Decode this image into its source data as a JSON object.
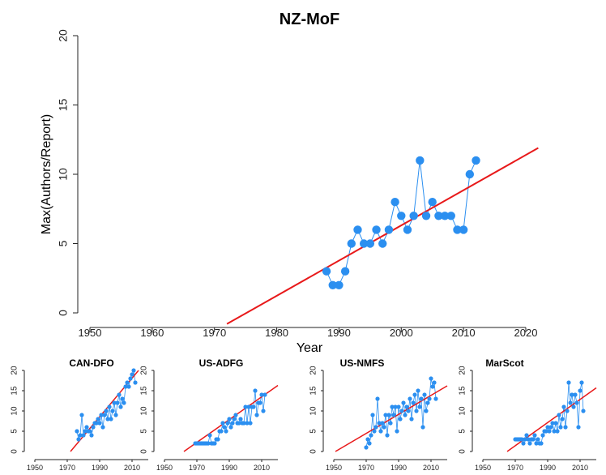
{
  "chart_data": [
    {
      "type": "scatter",
      "title": "NZ-MoF",
      "xlabel": "Year",
      "ylabel": "Max(Authors/Report)",
      "xlim": [
        1950,
        2020
      ],
      "ylim": [
        0,
        20
      ],
      "xticks": [
        1950,
        1960,
        1970,
        1980,
        1990,
        2000,
        2010,
        2020
      ],
      "yticks": [
        0,
        5,
        10,
        15,
        20
      ],
      "grid": false,
      "connect_points": true,
      "trend": {
        "x": [
          1972,
          2022
        ],
        "y": [
          -0.8,
          11.9
        ]
      },
      "x": [
        1988,
        1989,
        1990,
        1991,
        1992,
        1993,
        1994,
        1995,
        1996,
        1997,
        1998,
        1999,
        2000,
        2001,
        2002,
        2003,
        2004,
        2005,
        2006,
        2007,
        2008,
        2009,
        2010,
        2011,
        2012
      ],
      "y": [
        3,
        2,
        2,
        3,
        5,
        6,
        5,
        5,
        6,
        5,
        6,
        8,
        7,
        6,
        7,
        11,
        7,
        8,
        7,
        7,
        7,
        6,
        6,
        10,
        11
      ]
    },
    {
      "type": "scatter",
      "title": "CAN-DFO",
      "xlim": [
        1950,
        2020
      ],
      "ylim": [
        0,
        20
      ],
      "xticks": [
        1950,
        1970,
        1990,
        2010
      ],
      "yticks": [
        0,
        5,
        10,
        15,
        20
      ],
      "connect_points": true,
      "trend": {
        "x": [
          1972,
          2014
        ],
        "y": [
          0,
          20
        ]
      },
      "x": [
        1976,
        1977,
        1978,
        1979,
        1980,
        1981,
        1982,
        1983,
        1984,
        1985,
        1986,
        1987,
        1988,
        1989,
        1990,
        1991,
        1992,
        1993,
        1994,
        1995,
        1996,
        1997,
        1998,
        1999,
        2000,
        2001,
        2002,
        2003,
        2004,
        2005,
        2006,
        2007,
        2008,
        2009,
        2010,
        2011,
        2012
      ],
      "y": [
        5,
        3,
        4,
        9,
        4,
        5,
        6,
        5,
        5,
        4,
        6,
        7,
        7,
        8,
        7,
        9,
        6,
        9,
        10,
        8,
        11,
        8,
        10,
        12,
        9,
        12,
        14,
        11,
        13,
        12,
        16,
        17,
        16,
        18,
        19,
        20,
        17
      ]
    },
    {
      "type": "scatter",
      "title": "US-ADFG",
      "xlim": [
        1950,
        2020
      ],
      "ylim": [
        0,
        20
      ],
      "xticks": [
        1950,
        1970,
        1990,
        2010
      ],
      "yticks": [
        0,
        5,
        10,
        15,
        20
      ],
      "connect_points": true,
      "trend": {
        "x": [
          1962,
          2020
        ],
        "y": [
          0,
          16.3
        ]
      },
      "x": [
        1969,
        1970,
        1971,
        1972,
        1973,
        1974,
        1975,
        1976,
        1977,
        1978,
        1979,
        1980,
        1981,
        1982,
        1983,
        1984,
        1985,
        1986,
        1987,
        1988,
        1989,
        1990,
        1991,
        1992,
        1993,
        1994,
        1995,
        1996,
        1997,
        1998,
        1999,
        2000,
        2001,
        2002,
        2003,
        2004,
        2005,
        2006,
        2007,
        2008,
        2009,
        2010,
        2011,
        2012
      ],
      "y": [
        2,
        2,
        2,
        2,
        2,
        2,
        2,
        2,
        2,
        4,
        2,
        2,
        2,
        3,
        3,
        5,
        5,
        7,
        6,
        5,
        7,
        8,
        6,
        7,
        8,
        9,
        7,
        7,
        8,
        7,
        7,
        11,
        7,
        11,
        7,
        11,
        11,
        15,
        9,
        12,
        12,
        14,
        10,
        14
      ]
    },
    {
      "type": "scatter",
      "title": "US-NMFS",
      "xlim": [
        1950,
        2020
      ],
      "ylim": [
        0,
        20
      ],
      "xticks": [
        1950,
        1970,
        1990,
        2010
      ],
      "yticks": [
        0,
        5,
        10,
        15,
        20
      ],
      "connect_points": true,
      "trend": {
        "x": [
          1951,
          2020
        ],
        "y": [
          0,
          16.2
        ]
      },
      "x": [
        1970,
        1971,
        1972,
        1973,
        1974,
        1975,
        1976,
        1977,
        1978,
        1979,
        1980,
        1981,
        1982,
        1983,
        1984,
        1985,
        1986,
        1987,
        1988,
        1989,
        1990,
        1991,
        1992,
        1993,
        1994,
        1995,
        1996,
        1997,
        1998,
        1999,
        2000,
        2001,
        2002,
        2003,
        2004,
        2005,
        2006,
        2007,
        2008,
        2009,
        2010,
        2011,
        2012,
        2013
      ],
      "y": [
        1,
        3,
        2,
        4,
        9,
        5,
        6,
        13,
        7,
        5,
        7,
        6,
        9,
        4,
        9,
        7,
        11,
        9,
        11,
        5,
        11,
        8,
        10,
        12,
        9,
        11,
        10,
        13,
        8,
        12,
        14,
        10,
        15,
        11,
        13,
        6,
        14,
        10,
        12,
        13,
        18,
        16,
        17,
        13
      ]
    },
    {
      "type": "scatter",
      "title": "MarScot",
      "xlim": [
        1950,
        2020
      ],
      "ylim": [
        0,
        20
      ],
      "xticks": [
        1950,
        1970,
        1990,
        2010
      ],
      "yticks": [
        0,
        5,
        10,
        15,
        20
      ],
      "connect_points": true,
      "trend": {
        "x": [
          1965,
          2020
        ],
        "y": [
          0,
          15.7
        ]
      },
      "x": [
        1970,
        1971,
        1972,
        1973,
        1974,
        1975,
        1976,
        1977,
        1978,
        1979,
        1980,
        1981,
        1982,
        1983,
        1984,
        1985,
        1986,
        1987,
        1988,
        1989,
        1990,
        1991,
        1992,
        1993,
        1994,
        1995,
        1996,
        1997,
        1998,
        1999,
        2000,
        2001,
        2002,
        2003,
        2004,
        2005,
        2006,
        2007,
        2008,
        2009,
        2010,
        2011,
        2012
      ],
      "y": [
        3,
        3,
        3,
        3,
        3,
        2,
        3,
        4,
        3,
        2,
        3,
        3,
        4,
        2,
        3,
        2,
        2,
        4,
        5,
        5,
        6,
        5,
        6,
        7,
        5,
        7,
        5,
        9,
        6,
        8,
        11,
        6,
        10,
        17,
        12,
        14,
        11,
        14,
        12,
        6,
        15,
        17,
        10
      ]
    }
  ],
  "colors": {
    "points": "#2b8ff0",
    "line": "#2b8ff0",
    "trend": "#e8191a"
  }
}
